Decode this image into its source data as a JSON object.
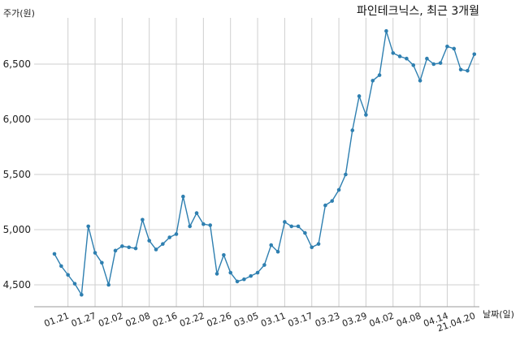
{
  "chart_data": {
    "type": "line",
    "title": "파인테크닉스, 최근 3개월",
    "ylabel": "주가(원)",
    "xlabel": "날짜(일)",
    "ylim": [
      4300,
      6900
    ],
    "y_ticks": [
      4500,
      5000,
      5500,
      6000,
      6500
    ],
    "y_tick_labels": [
      "4,500",
      "5,000",
      "5,500",
      "6,000",
      "6,500"
    ],
    "x_tick_labels": [
      "01.21",
      "01.27",
      "02.02",
      "02.08",
      "02.16",
      "02.22",
      "02.26",
      "03.05",
      "03.11",
      "03.17",
      "03.23",
      "03.29",
      "04.02",
      "04.08",
      "04.14",
      "21.04.20"
    ],
    "x_tick_index": [
      2,
      6,
      10,
      14,
      18,
      22,
      26,
      30,
      34,
      38,
      42,
      46,
      50,
      54,
      58,
      62
    ],
    "grid": true,
    "color": "#2e7fb0",
    "series": [
      {
        "values": [
          4780,
          4670,
          4590,
          4510,
          4410,
          5030,
          4790,
          4700,
          4500,
          4810,
          4850,
          4840,
          4830,
          5090,
          4900,
          4820,
          4870,
          4930,
          4960,
          5300,
          5030,
          5150,
          5050,
          5040,
          4600,
          4770,
          4610,
          4530,
          4550,
          4580,
          4610,
          4680,
          4860,
          4800,
          5070,
          5030,
          5030,
          4970,
          4840,
          4870,
          5220,
          5260,
          5360,
          5500,
          5900,
          6210,
          6040,
          6350,
          6400,
          6800,
          6600,
          6570,
          6550,
          6490,
          6350,
          6550,
          6500,
          6510,
          6660,
          6640,
          6450,
          6440,
          6590
        ]
      }
    ]
  }
}
